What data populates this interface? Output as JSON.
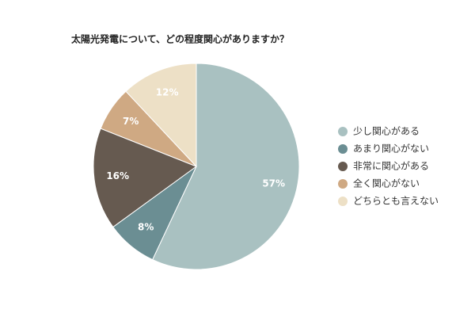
{
  "chart_data": {
    "type": "pie",
    "title": "太陽光発電について、どの程度関心がありますか？",
    "categories": [
      "少し関心がある",
      "あまり関心がない",
      "非常に関心がある",
      "全く関心がない",
      "どちらとも言えない"
    ],
    "values": [
      57,
      8,
      16,
      7,
      12
    ],
    "value_labels": [
      "57%",
      "8%",
      "16%",
      "7%",
      "12%"
    ],
    "colors": [
      "#a9c1c1",
      "#6b8e93",
      "#665a50",
      "#cfa983",
      "#ede0c6"
    ],
    "legend": "right"
  }
}
